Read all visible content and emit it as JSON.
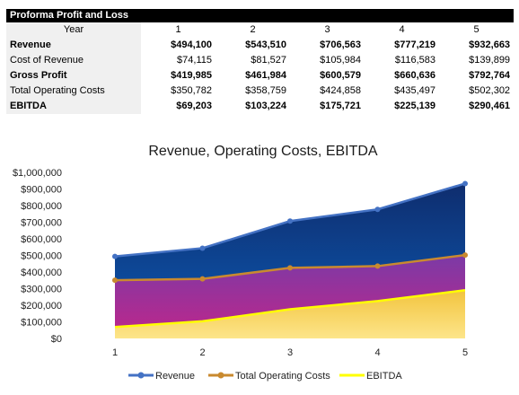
{
  "table": {
    "title": "Proforma Profit and Loss",
    "year_label": "Year",
    "years": [
      "1",
      "2",
      "3",
      "4",
      "5"
    ],
    "rows": [
      {
        "label": "Revenue",
        "bold": true,
        "values": [
          "$494,100",
          "$543,510",
          "$706,563",
          "$777,219",
          "$932,663"
        ]
      },
      {
        "label": "Cost of Revenue",
        "bold": false,
        "values": [
          "$74,115",
          "$81,527",
          "$105,984",
          "$116,583",
          "$139,899"
        ]
      },
      {
        "label": "Gross Profit",
        "bold": true,
        "values": [
          "$419,985",
          "$461,984",
          "$600,579",
          "$660,636",
          "$792,764"
        ]
      },
      {
        "label": "Total Operating Costs",
        "bold": false,
        "values": [
          "$350,782",
          "$358,759",
          "$424,858",
          "$435,497",
          "$502,302"
        ]
      },
      {
        "label": "EBITDA",
        "bold": true,
        "values": [
          "$69,203",
          "$103,224",
          "$175,721",
          "$225,139",
          "$290,461"
        ]
      }
    ]
  },
  "chart_data": {
    "type": "area",
    "title": "Revenue, Operating Costs, EBITDA",
    "x": [
      1,
      2,
      3,
      4,
      5
    ],
    "ylim": [
      0,
      1000000
    ],
    "y_ticks": [
      "$0",
      "$100,000",
      "$200,000",
      "$300,000",
      "$400,000",
      "$500,000",
      "$600,000",
      "$700,000",
      "$800,000",
      "$900,000",
      "$1,000,000"
    ],
    "x_ticks": [
      "1",
      "2",
      "3",
      "4",
      "5"
    ],
    "grid": false,
    "legend": "bottom",
    "series": [
      {
        "name": "Revenue",
        "values": [
          494100,
          543510,
          706563,
          777219,
          932663
        ],
        "line_color": "#4472c4",
        "fill_top": "#0f2d6e",
        "fill_bottom": "#0b5bb5"
      },
      {
        "name": "Total Operating Costs",
        "values": [
          350782,
          358759,
          424858,
          435497,
          502302
        ],
        "line_color": "#c98a2f",
        "fill_top": "#7b3aa6",
        "fill_bottom": "#c0268a"
      },
      {
        "name": "EBITDA",
        "values": [
          69203,
          103224,
          175721,
          225139,
          290461
        ],
        "line_color": "#ffff00",
        "fill_top": "#f2c43e",
        "fill_bottom": "#fde58a"
      }
    ]
  }
}
